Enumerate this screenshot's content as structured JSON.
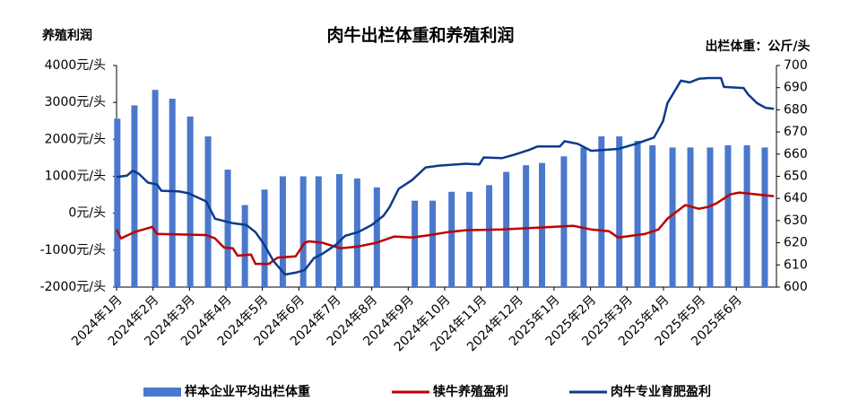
{
  "chart_data": {
    "type": "combo",
    "title": "肉牛出栏体重和养殖利润",
    "y_label": "养殖利润",
    "y2_label": "出栏体重：公斤/头",
    "xlim": [
      0,
      18.1
    ],
    "xticks": [
      {
        "value": 0,
        "label": "2024年1月"
      },
      {
        "value": 1,
        "label": "2024年2月"
      },
      {
        "value": 2,
        "label": "2024年3月"
      },
      {
        "value": 3,
        "label": "2024年4月"
      },
      {
        "value": 4,
        "label": "2024年5月"
      },
      {
        "value": 5,
        "label": "2024年6月"
      },
      {
        "value": 6,
        "label": "2024年7月"
      },
      {
        "value": 7,
        "label": "2024年8月"
      },
      {
        "value": 8,
        "label": "2024年9月"
      },
      {
        "value": 9,
        "label": "2024年10月"
      },
      {
        "value": 10,
        "label": "2024年11月"
      },
      {
        "value": 11,
        "label": "2024年12月"
      },
      {
        "value": 12,
        "label": "2025年1月"
      },
      {
        "value": 13,
        "label": "2025年2月"
      },
      {
        "value": 14,
        "label": "2025年3月"
      },
      {
        "value": 15,
        "label": "2025年4月"
      },
      {
        "value": 16,
        "label": "2025年5月"
      },
      {
        "value": 17,
        "label": "2025年6月"
      }
    ],
    "ylim": [
      -2000,
      4000
    ],
    "yticks": [
      {
        "value": 4000,
        "label": "4000元/头"
      },
      {
        "value": 3000,
        "label": "3000元/头"
      },
      {
        "value": 2000,
        "label": "2000元/头"
      },
      {
        "value": 1000,
        "label": "1000元/头"
      },
      {
        "value": 0,
        "label": "0元/头"
      },
      {
        "value": -1000,
        "label": "-1000元/头"
      },
      {
        "value": -2000,
        "label": "-2000元/头"
      }
    ],
    "y2lim": [
      600,
      700
    ],
    "y2ticks": [
      600,
      610,
      620,
      630,
      640,
      650,
      660,
      670,
      680,
      690,
      700
    ],
    "legend": "bottom",
    "series": [
      {
        "name": "样本企业平均出栏体重",
        "type": "bar",
        "axis": "y2",
        "color": "#4a78cc",
        "x": [
          0.02,
          0.49,
          1.06,
          1.53,
          2.02,
          2.51,
          3.05,
          3.52,
          4.06,
          4.56,
          5.12,
          5.54,
          6.11,
          6.6,
          7.14,
          8.18,
          8.67,
          9.19,
          9.68,
          10.22,
          10.69,
          11.23,
          11.67,
          12.27,
          12.81,
          13.3,
          13.79,
          14.29,
          14.7,
          15.25,
          15.74,
          16.28,
          16.77,
          17.29,
          17.78
        ],
        "values": [
          676,
          682,
          689,
          685,
          677,
          668,
          653,
          637,
          644,
          650,
          650,
          650,
          651,
          649,
          645,
          639,
          639,
          643,
          643,
          646,
          652,
          655,
          656,
          659,
          663,
          668,
          668,
          666,
          664,
          663,
          663,
          663,
          664,
          664,
          663
        ]
      },
      {
        "name": "犊牛养殖盈利",
        "type": "line",
        "color": "#c00000",
        "x": [
          0,
          0.12,
          0.49,
          0.98,
          1.11,
          2.46,
          2.7,
          2.95,
          3.19,
          3.32,
          3.69,
          3.81,
          4.18,
          4.42,
          4.91,
          5.16,
          5.28,
          5.65,
          6.14,
          6.63,
          7.13,
          7.62,
          8.11,
          8.6,
          9.09,
          9.58,
          10.57,
          11.55,
          12.53,
          13.02,
          13.51,
          13.76,
          14.13,
          14.5,
          14.86,
          15.11,
          15.6,
          15.97,
          16.22,
          16.46,
          16.83,
          17.08,
          17.57,
          18.03
        ],
        "values": [
          -440,
          -680,
          -510,
          -370,
          -560,
          -590,
          -680,
          -930,
          -950,
          -1150,
          -1120,
          -1370,
          -1370,
          -1200,
          -1170,
          -800,
          -760,
          -800,
          -950,
          -900,
          -800,
          -630,
          -660,
          -590,
          -510,
          -460,
          -440,
          -390,
          -340,
          -440,
          -490,
          -660,
          -610,
          -560,
          -440,
          -150,
          220,
          120,
          170,
          270,
          510,
          560,
          510,
          460
        ]
      },
      {
        "name": "肉牛专业育肥盈利",
        "type": "line",
        "color": "#0c3a8c",
        "x": [
          0,
          0.29,
          0.44,
          0.61,
          0.86,
          1.11,
          1.23,
          1.72,
          1.97,
          2.46,
          2.7,
          3.19,
          3.56,
          3.81,
          4.05,
          4.3,
          4.62,
          4.91,
          5.16,
          5.41,
          5.65,
          6.02,
          6.27,
          6.63,
          7.0,
          7.32,
          7.49,
          7.74,
          8.11,
          8.48,
          8.85,
          9.58,
          9.95,
          10.07,
          10.57,
          10.93,
          11.3,
          11.55,
          12.16,
          12.29,
          12.65,
          13.02,
          13.76,
          14.25,
          14.74,
          14.99,
          15.11,
          15.48,
          15.72,
          15.97,
          16.22,
          16.58,
          16.66,
          17.2,
          17.32,
          17.57,
          17.81,
          18.03
        ],
        "values": [
          980,
          1020,
          1150,
          1070,
          830,
          780,
          610,
          590,
          540,
          320,
          -150,
          -270,
          -320,
          -510,
          -850,
          -1290,
          -1660,
          -1610,
          -1540,
          -1220,
          -1100,
          -850,
          -610,
          -510,
          -320,
          -70,
          170,
          660,
          900,
          1240,
          1290,
          1340,
          1320,
          1510,
          1490,
          1590,
          1710,
          1810,
          1810,
          1950,
          1880,
          1690,
          1740,
          1880,
          2050,
          2490,
          2980,
          3590,
          3540,
          3640,
          3660,
          3660,
          3420,
          3390,
          3220,
          2980,
          2850,
          2830
        ]
      }
    ]
  }
}
